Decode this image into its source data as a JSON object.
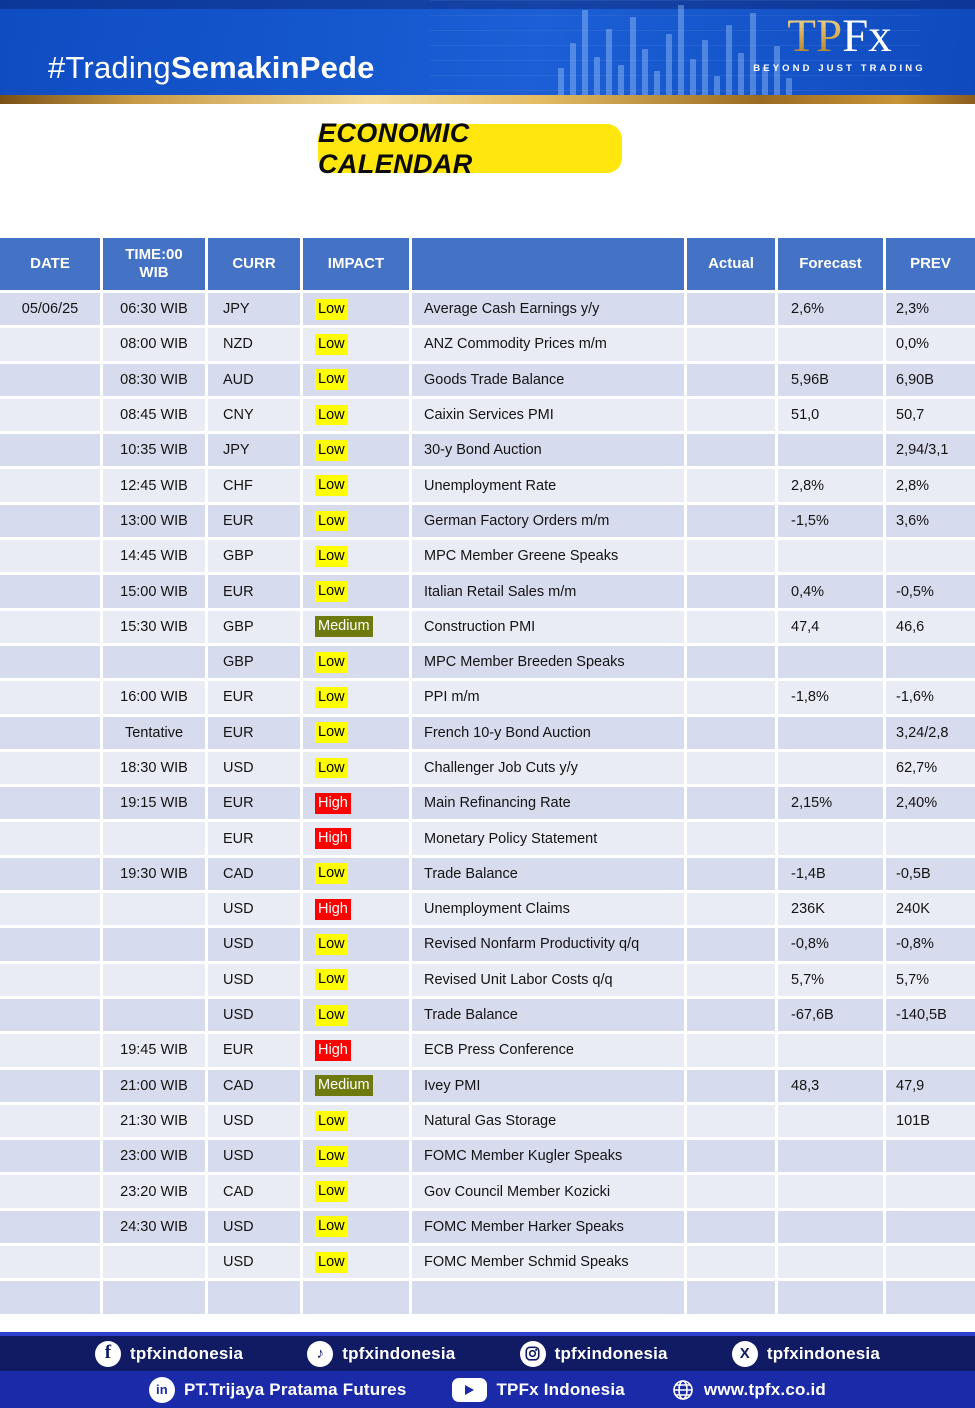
{
  "header": {
    "hashtag_light": "#Trading",
    "hashtag_bold": "SemakinPede",
    "logo_tp": "TP",
    "logo_fx": "Fx",
    "logo_tagline": "BEYOND JUST TRADING"
  },
  "title": "ECONOMIC CALENDAR",
  "colors": {
    "table_header": "#4472c4",
    "row_dark": "#d6dbed",
    "row_light": "#eaecf5",
    "impact_low_bg": "#ffff00",
    "impact_medium_bg": "#6e7a0e",
    "impact_high_bg": "#ff0000",
    "badge_yellow": "#ffe60d",
    "footer_navy": "#111b63",
    "footer_blue": "#1b2aa8"
  },
  "table": {
    "columns": {
      "date": "DATE",
      "time_line1": "TIME:00",
      "time_line2": "WIB",
      "curr": "CURR",
      "impact": "IMPACT",
      "event": "",
      "actual": "Actual",
      "forecast": "Forecast",
      "prev": "PREV"
    },
    "rows": [
      {
        "date": "05/06/25",
        "time": "06:30 WIB",
        "curr": "JPY",
        "impact": "Low",
        "event": "Average Cash Earnings y/y",
        "actual": "",
        "forecast": "2,6%",
        "prev": "2,3%"
      },
      {
        "date": "",
        "time": "08:00 WIB",
        "curr": "NZD",
        "impact": "Low",
        "event": "ANZ Commodity Prices m/m",
        "actual": "",
        "forecast": "",
        "prev": "0,0%"
      },
      {
        "date": "",
        "time": "08:30 WIB",
        "curr": "AUD",
        "impact": "Low",
        "event": "Goods Trade Balance",
        "actual": "",
        "forecast": "5,96B",
        "prev": "6,90B"
      },
      {
        "date": "",
        "time": "08:45 WIB",
        "curr": "CNY",
        "impact": "Low",
        "event": "Caixin Services PMI",
        "actual": "",
        "forecast": "51,0",
        "prev": "50,7"
      },
      {
        "date": "",
        "time": "10:35 WIB",
        "curr": "JPY",
        "impact": "Low",
        "event": "30-y Bond Auction",
        "actual": "",
        "forecast": "",
        "prev": "2,94/3,1"
      },
      {
        "date": "",
        "time": "12:45 WIB",
        "curr": "CHF",
        "impact": "Low",
        "event": "Unemployment Rate",
        "actual": "",
        "forecast": "2,8%",
        "prev": "2,8%"
      },
      {
        "date": "",
        "time": "13:00 WIB",
        "curr": "EUR",
        "impact": "Low",
        "event": "German Factory Orders m/m",
        "actual": "",
        "forecast": "-1,5%",
        "prev": "3,6%"
      },
      {
        "date": "",
        "time": "14:45 WIB",
        "curr": "GBP",
        "impact": "Low",
        "event": "MPC Member Greene Speaks",
        "actual": "",
        "forecast": "",
        "prev": ""
      },
      {
        "date": "",
        "time": "15:00 WIB",
        "curr": "EUR",
        "impact": "Low",
        "event": "Italian Retail Sales m/m",
        "actual": "",
        "forecast": "0,4%",
        "prev": "-0,5%"
      },
      {
        "date": "",
        "time": "15:30 WIB",
        "curr": "GBP",
        "impact": "Medium",
        "event": "Construction PMI",
        "actual": "",
        "forecast": "47,4",
        "prev": "46,6"
      },
      {
        "date": "",
        "time": "",
        "curr": "GBP",
        "impact": "Low",
        "event": "MPC Member Breeden Speaks",
        "actual": "",
        "forecast": "",
        "prev": ""
      },
      {
        "date": "",
        "time": "16:00 WIB",
        "curr": "EUR",
        "impact": "Low",
        "event": "PPI m/m",
        "actual": "",
        "forecast": "-1,8%",
        "prev": "-1,6%"
      },
      {
        "date": "",
        "time": "Tentative",
        "curr": "EUR",
        "impact": "Low",
        "event": "French 10-y Bond Auction",
        "actual": "",
        "forecast": "",
        "prev": "3,24/2,8"
      },
      {
        "date": "",
        "time": "18:30 WIB",
        "curr": "USD",
        "impact": "Low",
        "event": "Challenger Job Cuts y/y",
        "actual": "",
        "forecast": "",
        "prev": "62,7%"
      },
      {
        "date": "",
        "time": "19:15 WIB",
        "curr": "EUR",
        "impact": "High",
        "event": "Main Refinancing Rate",
        "actual": "",
        "forecast": "2,15%",
        "prev": "2,40%"
      },
      {
        "date": "",
        "time": "",
        "curr": "EUR",
        "impact": "High",
        "event": "Monetary Policy Statement",
        "actual": "",
        "forecast": "",
        "prev": ""
      },
      {
        "date": "",
        "time": "19:30 WIB",
        "curr": "CAD",
        "impact": "Low",
        "event": "Trade Balance",
        "actual": "",
        "forecast": "-1,4B",
        "prev": "-0,5B"
      },
      {
        "date": "",
        "time": "",
        "curr": "USD",
        "impact": "High",
        "event": "Unemployment Claims",
        "actual": "",
        "forecast": "236K",
        "prev": "240K"
      },
      {
        "date": "",
        "time": "",
        "curr": "USD",
        "impact": "Low",
        "event": "Revised Nonfarm Productivity q/q",
        "actual": "",
        "forecast": "-0,8%",
        "prev": "-0,8%"
      },
      {
        "date": "",
        "time": "",
        "curr": "USD",
        "impact": "Low",
        "event": "Revised Unit Labor Costs q/q",
        "actual": "",
        "forecast": "5,7%",
        "prev": "5,7%"
      },
      {
        "date": "",
        "time": "",
        "curr": "USD",
        "impact": "Low",
        "event": "Trade Balance",
        "actual": "",
        "forecast": "-67,6B",
        "prev": "-140,5B"
      },
      {
        "date": "",
        "time": "19:45 WIB",
        "curr": "EUR",
        "impact": "High",
        "event": "ECB Press Conference",
        "actual": "",
        "forecast": "",
        "prev": ""
      },
      {
        "date": "",
        "time": "21:00 WIB",
        "curr": "CAD",
        "impact": "Medium",
        "event": "Ivey PMI",
        "actual": "",
        "forecast": "48,3",
        "prev": "47,9"
      },
      {
        "date": "",
        "time": "21:30 WIB",
        "curr": "USD",
        "impact": "Low",
        "event": "Natural Gas Storage",
        "actual": "",
        "forecast": "",
        "prev": "101B"
      },
      {
        "date": "",
        "time": "23:00 WIB",
        "curr": "USD",
        "impact": "Low",
        "event": "FOMC Member Kugler Speaks",
        "actual": "",
        "forecast": "",
        "prev": ""
      },
      {
        "date": "",
        "time": "23:20 WIB",
        "curr": "CAD",
        "impact": "Low",
        "event": "Gov Council Member Kozicki",
        "actual": "",
        "forecast": "",
        "prev": ""
      },
      {
        "date": "",
        "time": "24:30 WIB",
        "curr": "USD",
        "impact": "Low",
        "event": "FOMC Member Harker Speaks",
        "actual": "",
        "forecast": "",
        "prev": ""
      },
      {
        "date": "",
        "time": "",
        "curr": "USD",
        "impact": "Low",
        "event": "FOMC Member Schmid Speaks",
        "actual": "",
        "forecast": "",
        "prev": ""
      },
      {
        "date": "",
        "time": "",
        "curr": "",
        "impact": "",
        "event": "",
        "actual": "",
        "forecast": "",
        "prev": ""
      }
    ]
  },
  "footer": {
    "social_row": [
      {
        "icon": "facebook-icon",
        "label": "tpfxindonesia"
      },
      {
        "icon": "tiktok-icon",
        "label": "tpfxindonesia"
      },
      {
        "icon": "instagram-icon",
        "label": "tpfxindonesia"
      },
      {
        "icon": "x-icon",
        "label": "tpfxindonesia"
      }
    ],
    "info_row": [
      {
        "icon": "linkedin-icon",
        "label": "PT.Trijaya Pratama Futures"
      },
      {
        "icon": "youtube-icon",
        "label": "TPFx Indonesia"
      },
      {
        "icon": "globe-icon",
        "label": "www.tpfx.co.id"
      }
    ]
  }
}
